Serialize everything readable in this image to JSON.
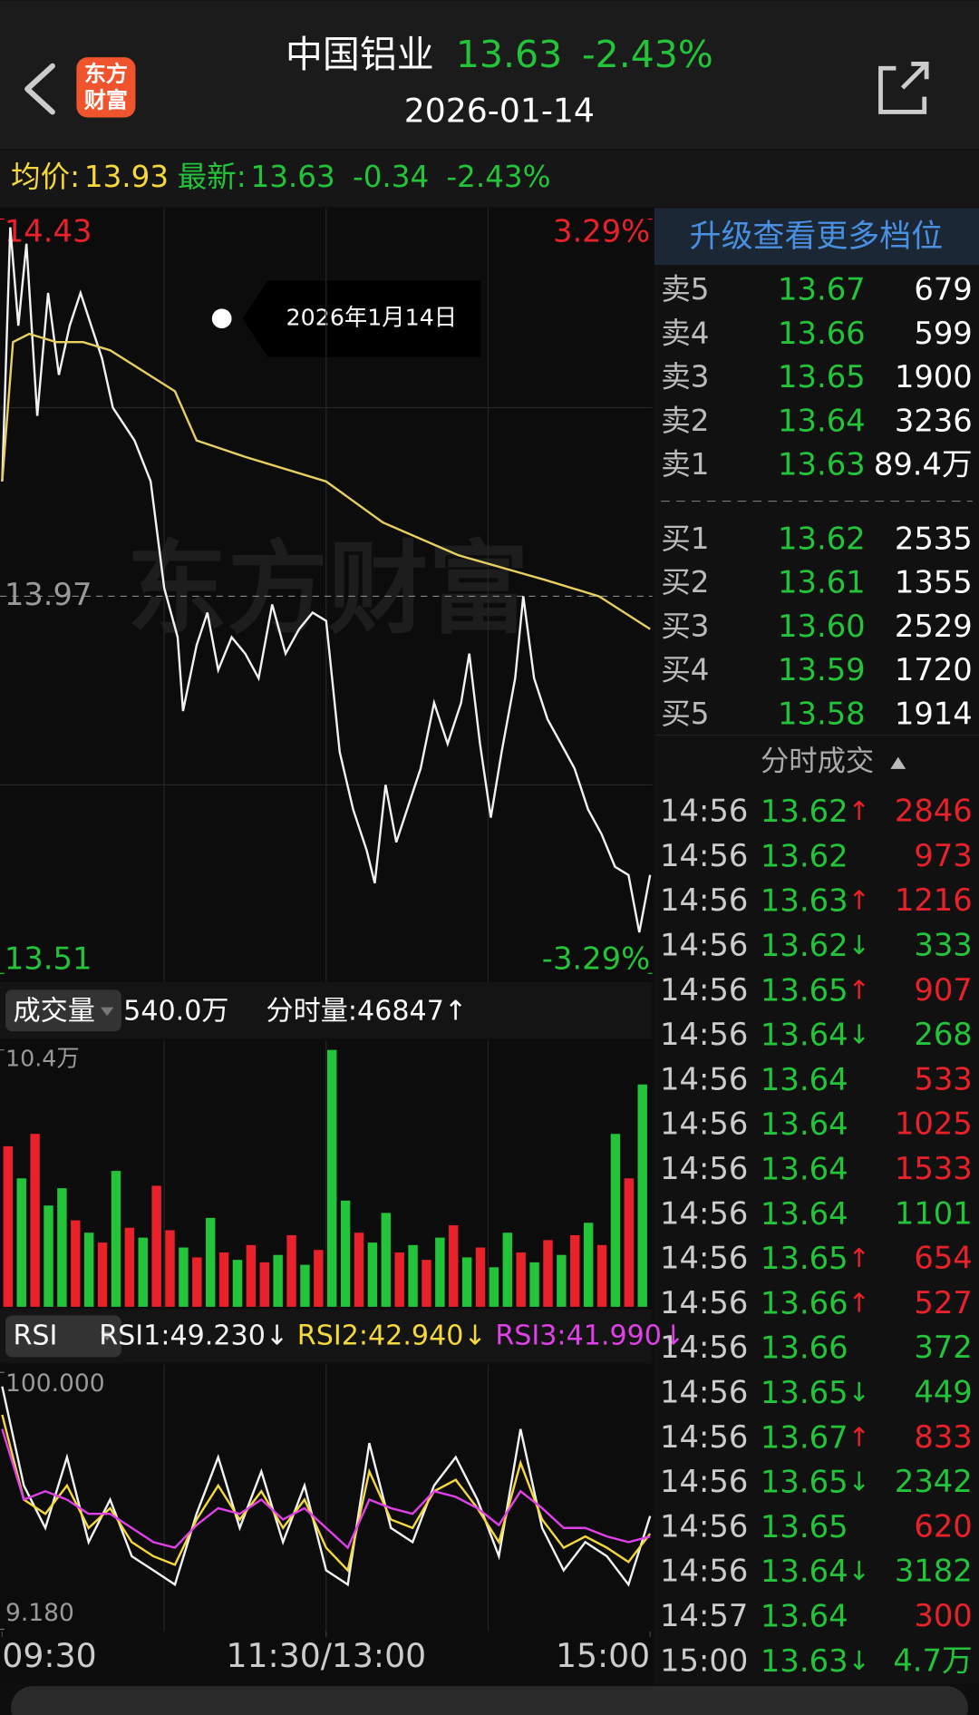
{
  "header": {
    "title": "中国铝业",
    "price": "13.63",
    "change_pct": "-2.43%",
    "date": "2026-01-14",
    "logo_lines": [
      "东方",
      "财富"
    ]
  },
  "info_bar": {
    "avg_label": "均价:",
    "avg": "13.93",
    "latest_label": "最新:",
    "latest": "13.63",
    "change": "-0.34",
    "change_pct": "-2.43%"
  },
  "tooltip": "2026年1月14日",
  "watermark": "东方财富",
  "volume_header": {
    "label": "成交量",
    "total": "540.0万",
    "tick_volume": "分时量:46847↑"
  },
  "rsi_header": {
    "label": "RSI",
    "items": [
      {
        "text": "RSI1:49.230↓",
        "color": "#f2f2f2"
      },
      {
        "text": "RSI2:42.940↓",
        "color": "#f5d83c"
      },
      {
        "text": "RSI3:41.990↓",
        "color": "#e040e8"
      }
    ]
  },
  "chart_data": [
    {
      "type": "line",
      "xlim": [
        0,
        240
      ],
      "xticks": [
        {
          "value": 0,
          "label": "09:30"
        },
        {
          "value": 120,
          "label": "11:30/13:00"
        },
        {
          "value": 240,
          "label": "15:00"
        }
      ],
      "xgrid": [
        60,
        120,
        180
      ],
      "ylim": [
        13.51,
        14.43
      ],
      "yticks": [
        14.43,
        13.97,
        13.51
      ],
      "ygrid": [
        14.2,
        13.74
      ],
      "y2lim": [
        -3.29,
        3.29
      ],
      "y2ticks": [
        {
          "value": 3.29,
          "label": "3.29%"
        },
        {
          "value": -3.29,
          "label": "-3.29%"
        }
      ],
      "series": [
        {
          "color": "#f2f2f2",
          "x": [
            0,
            3,
            6,
            9,
            13,
            17,
            21,
            25,
            29,
            33,
            37,
            41,
            45,
            49,
            55,
            60,
            65,
            67,
            72,
            76,
            80,
            85,
            90,
            95,
            100,
            105,
            110,
            115,
            120,
            125,
            130,
            135,
            138,
            142,
            146,
            150,
            155,
            160,
            165,
            170,
            173,
            177,
            181,
            185,
            190,
            193,
            197,
            202,
            207,
            212,
            217,
            222,
            227,
            232,
            236,
            240
          ],
          "values": [
            14.11,
            14.42,
            14.3,
            14.4,
            14.19,
            14.34,
            14.24,
            14.3,
            14.34,
            14.3,
            14.26,
            14.2,
            14.18,
            14.16,
            14.11,
            13.98,
            13.92,
            13.83,
            13.91,
            13.95,
            13.88,
            13.92,
            13.9,
            13.87,
            13.96,
            13.9,
            13.93,
            13.95,
            13.94,
            13.78,
            13.71,
            13.66,
            13.62,
            13.74,
            13.67,
            13.71,
            13.76,
            13.84,
            13.79,
            13.84,
            13.9,
            13.79,
            13.7,
            13.78,
            13.87,
            13.97,
            13.87,
            13.82,
            13.79,
            13.76,
            13.71,
            13.68,
            13.64,
            13.63,
            13.56,
            13.63
          ]
        },
        {
          "color": "#e8d060",
          "x": [
            0,
            4,
            10,
            20,
            30,
            40,
            64,
            72,
            90,
            120,
            141,
            169,
            201,
            221,
            240
          ],
          "values": [
            14.11,
            14.28,
            14.29,
            14.28,
            14.28,
            14.27,
            14.22,
            14.16,
            14.14,
            14.11,
            14.06,
            14.02,
            13.99,
            13.97,
            13.93
          ]
        }
      ]
    },
    {
      "type": "bar",
      "xlim": [
        0,
        240
      ],
      "ylim": [
        0,
        10.4
      ],
      "yticks": [
        {
          "value": 10.4,
          "label": "10.4万"
        }
      ],
      "x": [
        0,
        5,
        10,
        15,
        20,
        25,
        30,
        35,
        40,
        45,
        50,
        55,
        60,
        65,
        70,
        75,
        80,
        85,
        90,
        95,
        100,
        105,
        110,
        115,
        120,
        125,
        130,
        135,
        140,
        145,
        150,
        155,
        160,
        165,
        170,
        175,
        180,
        185,
        190,
        195,
        200,
        205,
        210,
        215,
        220,
        225,
        230,
        235
      ],
      "values": [
        6.5,
        5.2,
        7.0,
        4.1,
        4.8,
        3.5,
        3.0,
        2.6,
        5.5,
        3.2,
        2.8,
        4.9,
        3.1,
        2.4,
        2.0,
        3.6,
        2.2,
        1.9,
        2.5,
        1.8,
        2.1,
        2.9,
        1.7,
        2.3,
        10.4,
        4.3,
        3.0,
        2.6,
        3.8,
        2.2,
        2.5,
        1.9,
        2.8,
        3.3,
        2.0,
        2.4,
        1.6,
        3.0,
        2.2,
        1.8,
        2.7,
        2.1,
        2.9,
        3.4,
        2.5,
        7.0,
        5.2,
        9.0
      ],
      "colors": [
        "#e8212b",
        "#23c43a",
        "#e8212b",
        "#23c43a",
        "#23c43a",
        "#e8212b",
        "#23c43a",
        "#e8212b",
        "#23c43a",
        "#e8212b",
        "#23c43a",
        "#e8212b",
        "#e8212b",
        "#23c43a",
        "#e8212b",
        "#23c43a",
        "#e8212b",
        "#23c43a",
        "#e8212b",
        "#e8212b",
        "#23c43a",
        "#e8212b",
        "#23c43a",
        "#e8212b",
        "#23c43a",
        "#23c43a",
        "#e8212b",
        "#23c43a",
        "#23c43a",
        "#e8212b",
        "#23c43a",
        "#e8212b",
        "#23c43a",
        "#e8212b",
        "#23c43a",
        "#e8212b",
        "#23c43a",
        "#23c43a",
        "#e8212b",
        "#23c43a",
        "#e8212b",
        "#23c43a",
        "#e8212b",
        "#23c43a",
        "#e8212b",
        "#23c43a",
        "#e8212b",
        "#23c43a"
      ]
    },
    {
      "type": "line",
      "xlim": [
        0,
        240
      ],
      "ylim": [
        9.18,
        100
      ],
      "yticks": [
        {
          "value": 100,
          "label": "100.000"
        },
        {
          "value": 9.18,
          "label": "9.180"
        }
      ],
      "series": [
        {
          "color": "#f2f2f2",
          "x": [
            0,
            8,
            16,
            24,
            32,
            40,
            48,
            56,
            64,
            72,
            80,
            88,
            96,
            104,
            112,
            120,
            128,
            136,
            144,
            152,
            160,
            168,
            176,
            184,
            192,
            200,
            208,
            216,
            224,
            232,
            240
          ],
          "values": [
            95,
            60,
            45,
            70,
            40,
            55,
            35,
            30,
            25,
            50,
            70,
            45,
            65,
            40,
            60,
            30,
            25,
            75,
            45,
            40,
            60,
            70,
            55,
            35,
            80,
            45,
            30,
            40,
            35,
            25,
            49.23
          ]
        },
        {
          "color": "#f5d83c",
          "x": [
            0,
            8,
            16,
            24,
            32,
            40,
            48,
            56,
            64,
            72,
            80,
            88,
            96,
            104,
            112,
            120,
            128,
            136,
            144,
            152,
            160,
            168,
            176,
            184,
            192,
            200,
            208,
            216,
            224,
            232,
            240
          ],
          "values": [
            85,
            55,
            50,
            60,
            45,
            52,
            40,
            35,
            32,
            48,
            60,
            48,
            58,
            45,
            55,
            38,
            30,
            65,
            48,
            45,
            58,
            62,
            52,
            40,
            68,
            48,
            38,
            42,
            38,
            33,
            42.94
          ]
        },
        {
          "color": "#e040e8",
          "x": [
            0,
            8,
            16,
            24,
            32,
            40,
            48,
            56,
            64,
            72,
            80,
            88,
            96,
            104,
            112,
            120,
            128,
            136,
            144,
            152,
            160,
            168,
            176,
            184,
            192,
            200,
            208,
            216,
            224,
            232,
            240
          ],
          "values": [
            80,
            55,
            58,
            55,
            50,
            50,
            45,
            40,
            38,
            46,
            52,
            50,
            55,
            48,
            52,
            45,
            38,
            55,
            52,
            50,
            58,
            56,
            52,
            46,
            58,
            52,
            45,
            45,
            42,
            40,
            41.99
          ]
        }
      ]
    }
  ],
  "order_book": {
    "upgrade": "升级查看更多档位",
    "asks": [
      {
        "label": "卖5",
        "price": "13.67",
        "volume": "679"
      },
      {
        "label": "卖4",
        "price": "13.66",
        "volume": "599"
      },
      {
        "label": "卖3",
        "price": "13.65",
        "volume": "1900"
      },
      {
        "label": "卖2",
        "price": "13.64",
        "volume": "3236"
      },
      {
        "label": "卖1",
        "price": "13.63",
        "volume": "89.4万"
      }
    ],
    "bids": [
      {
        "label": "买1",
        "price": "13.62",
        "volume": "2535"
      },
      {
        "label": "买2",
        "price": "13.61",
        "volume": "1355"
      },
      {
        "label": "买3",
        "price": "13.60",
        "volume": "2529"
      },
      {
        "label": "买4",
        "price": "13.59",
        "volume": "1720"
      },
      {
        "label": "买5",
        "price": "13.58",
        "volume": "1914"
      }
    ]
  },
  "trades": {
    "title": "分时成交",
    "rows": [
      {
        "time": "14:56",
        "price": "13.62",
        "arrow": "↑",
        "volume": "2846",
        "color": "#e8212b"
      },
      {
        "time": "14:56",
        "price": "13.62",
        "volume": "973",
        "color": "#e8212b"
      },
      {
        "time": "14:56",
        "price": "13.63",
        "arrow": "↑",
        "volume": "1216",
        "color": "#e8212b"
      },
      {
        "time": "14:56",
        "price": "13.62",
        "arrow": "↓",
        "volume": "333",
        "color": "#23c43a"
      },
      {
        "time": "14:56",
        "price": "13.65",
        "arrow": "↑",
        "volume": "907",
        "color": "#e8212b"
      },
      {
        "time": "14:56",
        "price": "13.64",
        "arrow": "↓",
        "volume": "268",
        "color": "#23c43a"
      },
      {
        "time": "14:56",
        "price": "13.64",
        "volume": "533",
        "color": "#e8212b"
      },
      {
        "time": "14:56",
        "price": "13.64",
        "volume": "1025",
        "color": "#e8212b"
      },
      {
        "time": "14:56",
        "price": "13.64",
        "volume": "1533",
        "color": "#e8212b"
      },
      {
        "time": "14:56",
        "price": "13.64",
        "volume": "1101",
        "color": "#23c43a"
      },
      {
        "time": "14:56",
        "price": "13.65",
        "arrow": "↑",
        "volume": "654",
        "color": "#e8212b"
      },
      {
        "time": "14:56",
        "price": "13.66",
        "arrow": "↑",
        "volume": "527",
        "color": "#e8212b"
      },
      {
        "time": "14:56",
        "price": "13.66",
        "volume": "372",
        "color": "#23c43a"
      },
      {
        "time": "14:56",
        "price": "13.65",
        "arrow": "↓",
        "volume": "449",
        "color": "#23c43a"
      },
      {
        "time": "14:56",
        "price": "13.67",
        "arrow": "↑",
        "volume": "833",
        "color": "#e8212b"
      },
      {
        "time": "14:56",
        "price": "13.65",
        "arrow": "↓",
        "volume": "2342",
        "color": "#23c43a"
      },
      {
        "time": "14:56",
        "price": "13.65",
        "volume": "620",
        "color": "#e8212b"
      },
      {
        "time": "14:56",
        "price": "13.64",
        "arrow": "↓",
        "volume": "3182",
        "color": "#23c43a"
      },
      {
        "time": "14:57",
        "price": "13.64",
        "volume": "300",
        "color": "#e8212b"
      },
      {
        "time": "15:00",
        "price": "13.63",
        "arrow": "↓",
        "volume": "4.7万",
        "color": "#23c43a"
      }
    ]
  }
}
